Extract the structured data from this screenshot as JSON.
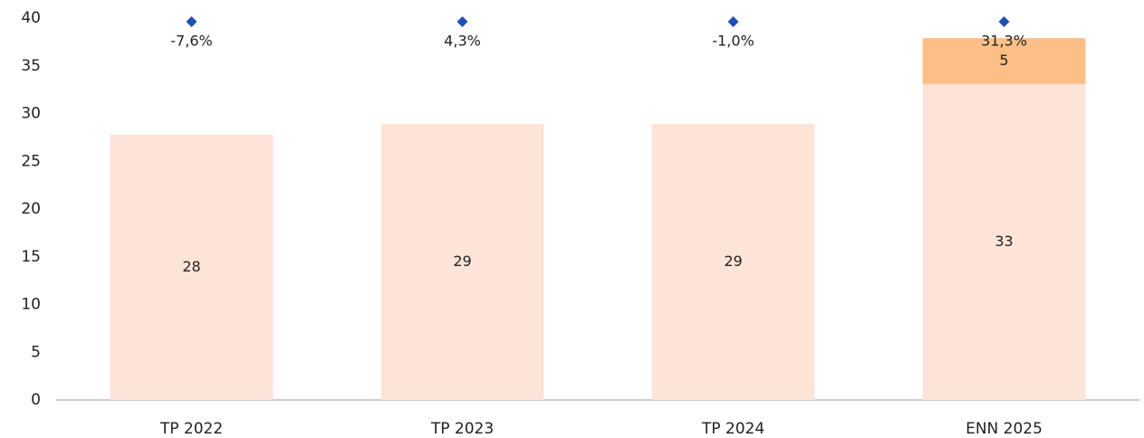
{
  "chart_data": {
    "type": "bar",
    "stacked": true,
    "categories": [
      "TP 2022",
      "TP 2023",
      "TP 2024",
      "ENN 2025"
    ],
    "series": [
      {
        "color": "#fce4d8",
        "values": [
          27.8,
          28.9,
          28.9,
          33.1
        ],
        "value_labels": [
          "28",
          "29",
          "29",
          "33"
        ]
      },
      {
        "color": "#fdbf86",
        "values": [
          null,
          null,
          null,
          4.8
        ],
        "value_labels": [
          null,
          null,
          null,
          "5"
        ]
      }
    ],
    "growth": {
      "color": "#1f4fb5",
      "values": [
        -7.6,
        4.3,
        -1.0,
        31.3
      ],
      "value_labels": [
        "-7,6%",
        "4,3%",
        "-1,0%",
        "31,3%"
      ]
    },
    "ylim": [
      0,
      40
    ],
    "yticks": [
      0,
      5,
      10,
      15,
      20,
      25,
      30,
      35,
      40
    ],
    "grid": false
  }
}
